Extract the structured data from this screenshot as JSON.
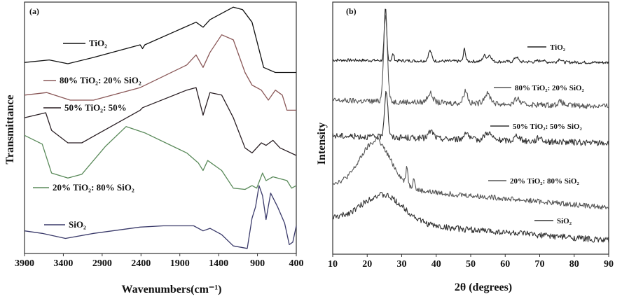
{
  "chart_data": [
    {
      "type": "line",
      "panel_label": "(a)",
      "xlabel": "Wavenumbers(cm⁻¹)",
      "ylabel": "Transmittance",
      "xlim": [
        3900,
        400
      ],
      "xaxis_reversed": true,
      "ylim": [
        0,
        100
      ],
      "y_units": "arbitrary (offset)",
      "xticks": [
        3900,
        3400,
        2900,
        2400,
        1900,
        1400,
        900,
        400
      ],
      "grid": false,
      "series": [
        {
          "name": "TiO₂",
          "color": "#111111",
          "x": [
            3900,
            3582,
            3342,
            3011,
            2411,
            2380,
            2350,
            1691,
            1601,
            1511,
            1211,
            1091,
            970,
            820,
            670,
            400
          ],
          "y": [
            76,
            77,
            75.5,
            78,
            83,
            81.5,
            83,
            92,
            90,
            93,
            98,
            97,
            92,
            74,
            72,
            72
          ]
        },
        {
          "name": "80% TiO₂: 20% SiO₂",
          "color": "#8a5858",
          "x": [
            3900,
            3612,
            3312,
            3011,
            2411,
            1811,
            1691,
            1601,
            1511,
            1361,
            1211,
            1060,
            970,
            850,
            760,
            670,
            580,
            520,
            400
          ],
          "y": [
            63,
            64,
            61,
            61,
            66,
            75,
            79,
            74,
            80,
            87,
            85,
            72,
            67,
            65,
            61,
            65,
            63,
            57,
            57
          ]
        },
        {
          "name": "50% TiO₂: 50%",
          "color": "#2a1f24",
          "x": [
            3900,
            3627,
            3552,
            3342,
            3162,
            2411,
            2380,
            1811,
            1691,
            1601,
            1511,
            1361,
            1211,
            1060,
            970,
            850,
            790,
            700,
            610,
            400
          ],
          "y": [
            54,
            56,
            49,
            44,
            44,
            57,
            58,
            65,
            66,
            55,
            64,
            63,
            54,
            42,
            40,
            44,
            43,
            45,
            42,
            39
          ]
        },
        {
          "name": "20% TiO₂: 80% SiO₂",
          "color": "#5a8a5a",
          "x": [
            3900,
            3672,
            3552,
            3342,
            3162,
            2861,
            2591,
            2351,
            1811,
            1661,
            1601,
            1541,
            1361,
            1211,
            1060,
            970,
            910,
            835,
            790,
            700,
            520,
            460,
            400
          ],
          "y": [
            47,
            43.5,
            32,
            30,
            31.5,
            42.5,
            50.5,
            48,
            40,
            36,
            33,
            37,
            33,
            26,
            25.5,
            27,
            26,
            32,
            29,
            30.5,
            29,
            26,
            27
          ]
        },
        {
          "name": "SiO₂",
          "color": "#3a3a6a",
          "x": [
            3900,
            3672,
            3372,
            3011,
            2411,
            2111,
            1721,
            1601,
            1511,
            1361,
            1211,
            1031,
            970,
            925,
            880,
            835,
            790,
            730,
            640,
            550,
            490,
            445,
            400
          ],
          "y": [
            9,
            8,
            6,
            8,
            10.5,
            11,
            11,
            9,
            10,
            7.5,
            3,
            2,
            14,
            18.5,
            27,
            23,
            13.5,
            24,
            18.5,
            12,
            3.5,
            4.5,
            11
          ]
        }
      ]
    },
    {
      "type": "line",
      "panel_label": "(b)",
      "xlabel": "2θ (degrees)",
      "ylabel": "Intensity",
      "xlim": [
        10,
        90
      ],
      "ylim": [
        0,
        100
      ],
      "y_units": "arbitrary (offset)",
      "xticks": [
        10,
        20,
        30,
        40,
        50,
        60,
        70,
        80,
        90
      ],
      "grid": false,
      "series": [
        {
          "name": "TiO₂",
          "color": "#222222",
          "baseline": [
            77,
            76
          ],
          "noise": 0.6,
          "peaks": [
            [
              25.3,
              20.7,
              0.35
            ],
            [
              27.5,
              2.6,
              0.3
            ],
            [
              38.2,
              4,
              0.5
            ],
            [
              48.2,
              5,
              0.3
            ],
            [
              54,
              2.4,
              0.5
            ],
            [
              55.5,
              2.6,
              0.5
            ],
            [
              63.2,
              2,
              0.5
            ],
            [
              69.5,
              0.5,
              0.4
            ],
            [
              70.8,
              0.9,
              0.4
            ],
            [
              75.8,
              1.3,
              0.5
            ]
          ]
        },
        {
          "name": "80% TiO₂: 20% SiO₂",
          "color": "#555555",
          "baseline": [
            61,
            58.7
          ],
          "noise": 1.1,
          "peaks": [
            [
              25.3,
              34.5,
              0.55
            ],
            [
              38.2,
              3.6,
              0.8
            ],
            [
              48.5,
              5,
              0.6
            ],
            [
              54.8,
              3.8,
              1.0
            ],
            [
              63.5,
              2.3,
              0.7
            ],
            [
              76,
              1.3,
              0.8
            ]
          ]
        },
        {
          "name": "50% TiO₂: 50% SiO₂",
          "color": "#333333",
          "baseline": [
            47,
            44
          ],
          "noise": 1.2,
          "peaks": [
            [
              25.5,
              18.5,
              0.5
            ],
            [
              38.5,
              2.8,
              0.8
            ],
            [
              48.7,
              3.2,
              0.6
            ],
            [
              55,
              3,
              1.0
            ],
            [
              63.5,
              2.2,
              0.7
            ],
            [
              70,
              1.8,
              0.7
            ]
          ]
        },
        {
          "name": "20% TiO₂: 80% SiO₂",
          "color": "#555555",
          "baseline": [
            28,
            18.5
          ],
          "noise": 1.0,
          "peaks": [
            [
              22.5,
              18,
              4.5
            ],
            [
              23,
              3,
              0.3
            ],
            [
              31.5,
              7,
              0.3
            ],
            [
              33.5,
              5,
              0.25
            ]
          ]
        },
        {
          "name": "SiO₂",
          "color": "#333333",
          "baseline": [
            14,
            5.4
          ],
          "noise": 1.2,
          "peaks": [
            [
              24.5,
              11,
              6
            ]
          ]
        }
      ]
    }
  ]
}
